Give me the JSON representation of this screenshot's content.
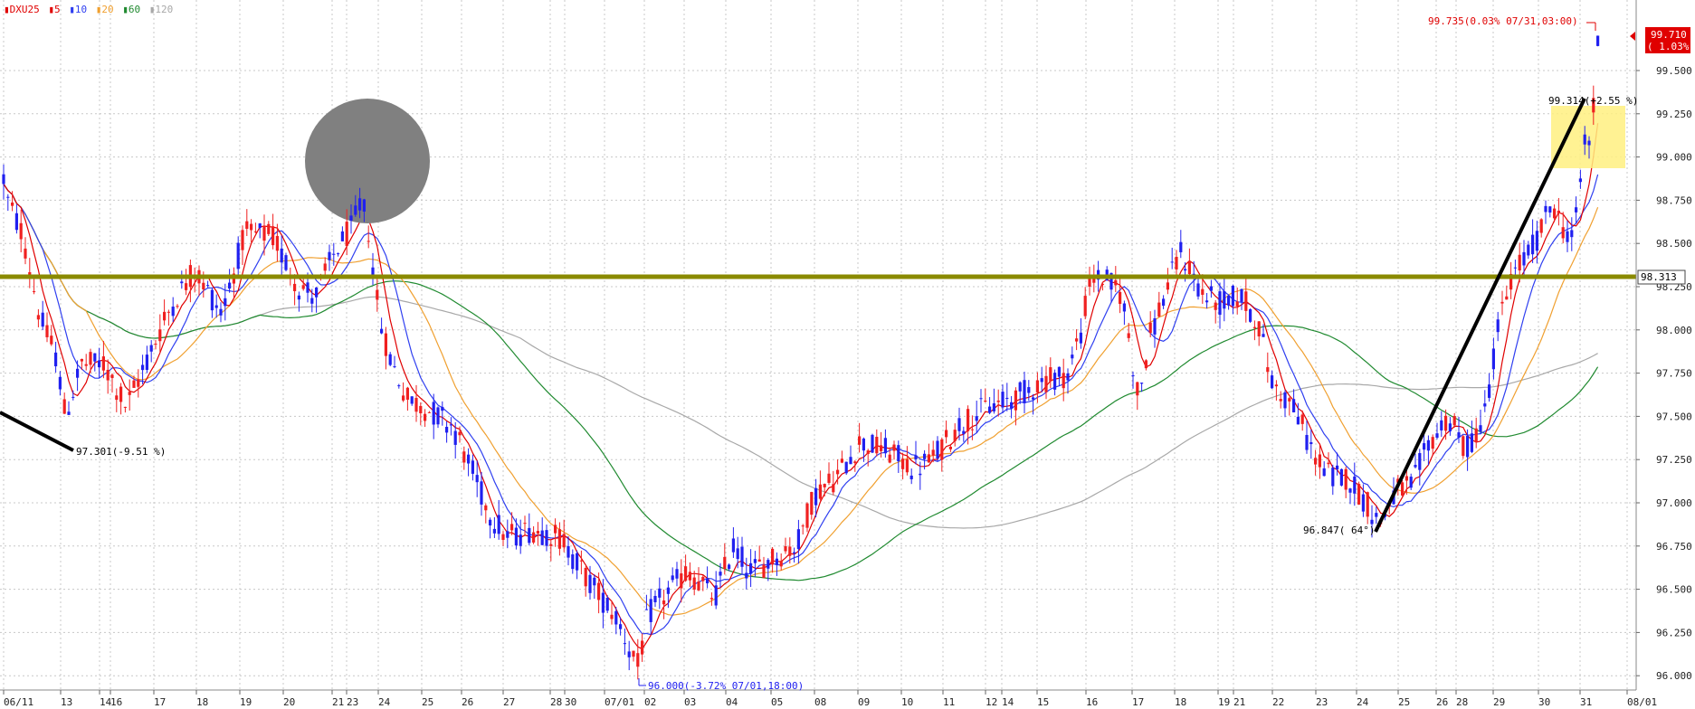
{
  "chart_data": {
    "type": "candlestick",
    "symbol": "DXU25",
    "legend": [
      {
        "label": "DXU25",
        "color": "#e00000"
      },
      {
        "label": "5",
        "color": "#e00000"
      },
      {
        "label": "10",
        "color": "#2f3ff0"
      },
      {
        "label": "20",
        "color": "#f0a030"
      },
      {
        "label": "60",
        "color": "#208a30"
      },
      {
        "label": "120",
        "color": "#a8a8a8"
      }
    ],
    "y_ticks": [
      "99.500",
      "99.250",
      "99.000",
      "98.750",
      "98.500",
      "98.250",
      "98.000",
      "97.750",
      "97.500",
      "97.250",
      "97.000",
      "96.750",
      "96.500",
      "96.250",
      "96.000"
    ],
    "ylim": [
      95.96,
      99.96
    ],
    "x_ticks": [
      "06/11",
      "13",
      "14",
      "16",
      "17",
      "18",
      "19",
      "20",
      "21",
      "23",
      "24",
      "25",
      "26",
      "27",
      "28",
      "30",
      "07/01",
      "02",
      "03",
      "04",
      "05",
      "08",
      "09",
      "10",
      "11",
      "12",
      "14",
      "15",
      "16",
      "17",
      "18",
      "19",
      "21",
      "22",
      "23",
      "24",
      "25",
      "26",
      "28",
      "29",
      "30",
      "31",
      "08/01"
    ],
    "current_price": {
      "value": 99.71,
      "label": "99.710",
      "change": "( 1.03%)"
    },
    "horizontal_line": {
      "value": 98.313,
      "label": "98.313"
    },
    "annotations": {
      "high": "99.735(0.03% 07/31,03:00)",
      "low": "96.000(-3.72% 07/01,18:00)",
      "trend_end": "99.314(+2.55 %)",
      "trend_start": "96.847( 64°)",
      "left": "97.301(-9.51 %)"
    },
    "colors": {
      "up": "#f02020",
      "down": "#2020f0",
      "ma5": "#e00000",
      "ma10": "#2f3ff0",
      "ma20": "#f0a030",
      "ma60": "#208a30",
      "ma120": "#a8a8a8",
      "hline": "#8a8a00",
      "highlight": "#fff080",
      "circle": "#808080"
    }
  }
}
